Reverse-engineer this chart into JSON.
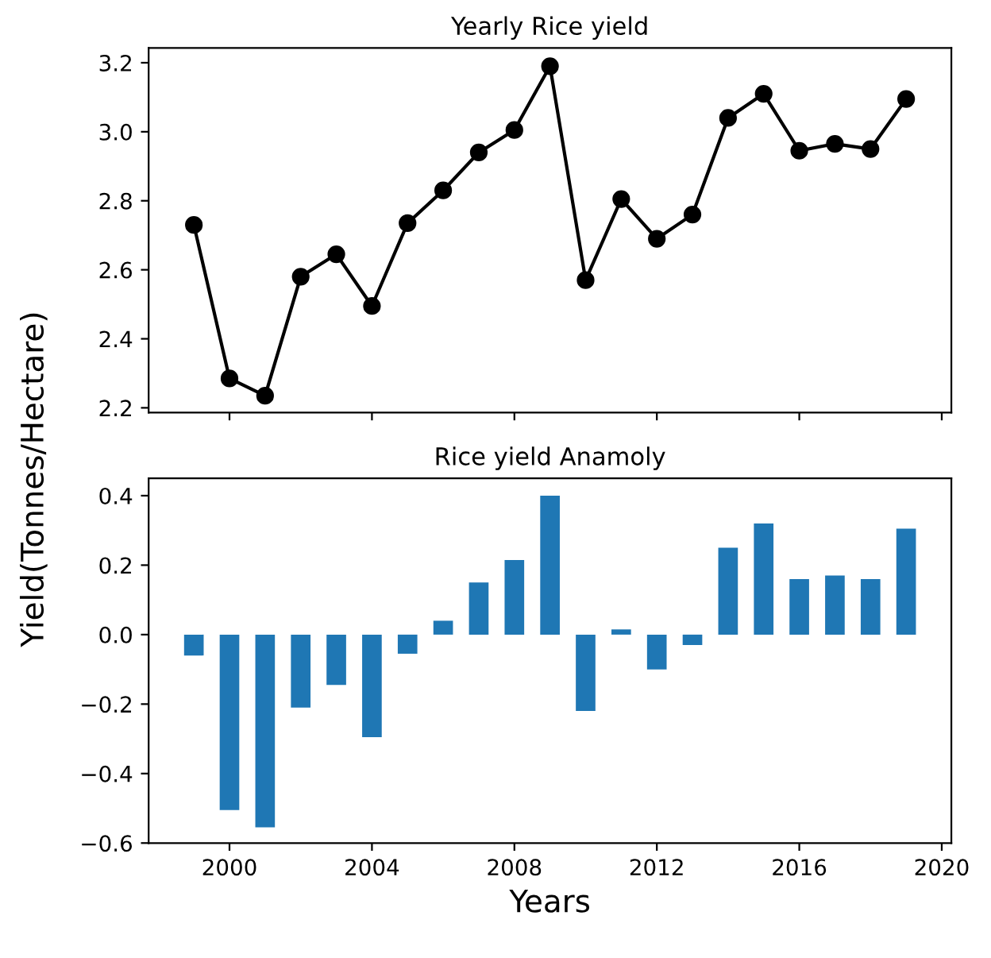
{
  "chart_data": [
    {
      "type": "line",
      "title": "Yearly Rice yield",
      "ylabel": "Yield(Tonnes/Hectare)",
      "x": [
        1999,
        2000,
        2001,
        2002,
        2003,
        2004,
        2005,
        2006,
        2007,
        2008,
        2009,
        2010,
        2011,
        2012,
        2013,
        2014,
        2015,
        2016,
        2017,
        2018,
        2019
      ],
      "series": [
        {
          "color": "#000000",
          "values": [
            2.73,
            2.285,
            2.235,
            2.58,
            2.645,
            2.495,
            2.735,
            2.83,
            2.94,
            3.005,
            3.19,
            2.57,
            2.805,
            2.69,
            2.76,
            3.04,
            3.11,
            2.945,
            2.965,
            2.95,
            3.095
          ]
        }
      ],
      "marker": "circle",
      "line_style": "solid",
      "xlim": [
        1997.73,
        2020.27
      ],
      "xticks": [
        2000,
        2004,
        2008,
        2012,
        2016,
        2020
      ],
      "ylim": [
        2.186,
        3.243
      ],
      "yticks": [
        {
          "value": 2.2,
          "label": "2.2"
        },
        {
          "value": 2.4,
          "label": "2.4"
        },
        {
          "value": 2.6,
          "label": "2.6"
        },
        {
          "value": 2.8,
          "label": "2.8"
        },
        {
          "value": 3.0,
          "label": "3.0"
        },
        {
          "value": 3.2,
          "label": "3.2"
        }
      ],
      "tick_labels": "y",
      "grid": false,
      "legend": false
    },
    {
      "type": "bar",
      "title": "Rice yield Anamoly",
      "xlabel": "Years",
      "x": [
        1999,
        2000,
        2001,
        2002,
        2003,
        2004,
        2005,
        2006,
        2007,
        2008,
        2009,
        2010,
        2011,
        2012,
        2013,
        2014,
        2015,
        2016,
        2017,
        2018,
        2019
      ],
      "series": [
        {
          "color": "#1f77b4",
          "values": [
            -0.06,
            -0.505,
            -0.555,
            -0.21,
            -0.145,
            -0.295,
            -0.055,
            0.04,
            0.15,
            0.215,
            0.4,
            -0.22,
            0.015,
            -0.1,
            -0.03,
            0.25,
            0.32,
            0.16,
            0.17,
            0.16,
            0.305
          ]
        }
      ],
      "xlim": [
        1997.73,
        2020.27
      ],
      "xticks": [
        2000,
        2004,
        2008,
        2012,
        2016,
        2020
      ],
      "ylim": [
        -0.6,
        0.45
      ],
      "yticks": [
        {
          "value": -0.6,
          "label": "−0.6"
        },
        {
          "value": -0.4,
          "label": "−0.4"
        },
        {
          "value": -0.2,
          "label": "−0.2"
        },
        {
          "value": 0.0,
          "label": "0.0"
        },
        {
          "value": 0.2,
          "label": "0.2"
        },
        {
          "value": 0.4,
          "label": "0.4"
        }
      ],
      "grid": false,
      "legend": false
    }
  ]
}
